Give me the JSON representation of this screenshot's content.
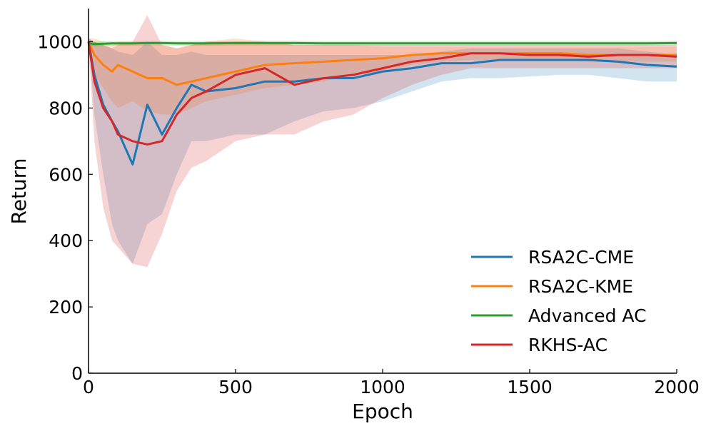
{
  "chart_data": {
    "type": "line",
    "x_label": "Epoch",
    "y_label": "Return",
    "x": [
      0,
      20,
      50,
      80,
      100,
      150,
      200,
      250,
      300,
      350,
      400,
      500,
      600,
      700,
      800,
      900,
      1000,
      1100,
      1200,
      1300,
      1400,
      1500,
      1600,
      1700,
      1800,
      1900,
      2000
    ],
    "xlim": [
      0,
      2000
    ],
    "xticks": [
      0,
      500,
      1000,
      1500,
      2000
    ],
    "ylim": [
      0,
      1100
    ],
    "yticks": [
      0,
      200,
      400,
      600,
      800,
      1000
    ],
    "legend": "lower right",
    "band_opacity": 0.2,
    "series": [
      {
        "name": "RSA2C-CME",
        "color": "#1f77b4",
        "values": [
          1000,
          900,
          810,
          760,
          730,
          630,
          810,
          720,
          800,
          870,
          850,
          860,
          880,
          880,
          890,
          890,
          910,
          920,
          935,
          935,
          945,
          945,
          945,
          945,
          940,
          930,
          925
        ],
        "lower": [
          1000,
          780,
          600,
          450,
          400,
          330,
          450,
          480,
          600,
          700,
          700,
          720,
          720,
          760,
          790,
          800,
          820,
          850,
          880,
          890,
          890,
          895,
          900,
          900,
          890,
          880,
          880
        ],
        "upper": [
          1010,
          1000,
          990,
          980,
          970,
          960,
          1000,
          960,
          960,
          970,
          960,
          960,
          960,
          960,
          960,
          960,
          960,
          960,
          970,
          980,
          980,
          980,
          980,
          980,
          980,
          970,
          960
        ]
      },
      {
        "name": "RSA2C-KME",
        "color": "#ff7f0e",
        "values": [
          1000,
          960,
          930,
          910,
          930,
          910,
          890,
          890,
          870,
          880,
          890,
          910,
          930,
          935,
          940,
          945,
          950,
          960,
          965,
          965,
          965,
          965,
          965,
          960,
          960,
          960,
          960
        ],
        "lower": [
          990,
          900,
          860,
          820,
          800,
          820,
          790,
          780,
          780,
          800,
          820,
          840,
          860,
          870,
          880,
          900,
          910,
          930,
          940,
          945,
          945,
          945,
          945,
          940,
          940,
          940,
          940
        ],
        "upper": [
          1010,
          1010,
          1000,
          990,
          1000,
          1000,
          990,
          990,
          980,
          990,
          1000,
          1010,
          1000,
          990,
          990,
          990,
          985,
          985,
          985,
          985,
          985,
          985,
          985,
          985,
          985,
          985,
          985
        ]
      },
      {
        "name": "Advanced AC",
        "color": "#2ca02c",
        "values": [
          995,
          993,
          994,
          995,
          995,
          995,
          996,
          996,
          995,
          995,
          995,
          996,
          996,
          996,
          995,
          995,
          995,
          995,
          995,
          995,
          995,
          995,
          995,
          995,
          995,
          995,
          996
        ],
        "lower": [
          988,
          986,
          987,
          988,
          988,
          988,
          989,
          989,
          988,
          988,
          988,
          989,
          989,
          989,
          988,
          988,
          988,
          988,
          988,
          988,
          988,
          988,
          988,
          988,
          988,
          988,
          989
        ],
        "upper": [
          1002,
          1000,
          1001,
          1002,
          1002,
          1002,
          1003,
          1003,
          1002,
          1002,
          1002,
          1003,
          1003,
          1003,
          1002,
          1002,
          1002,
          1002,
          1002,
          1002,
          1002,
          1002,
          1002,
          1002,
          1002,
          1002,
          1003
        ]
      },
      {
        "name": "RKHS-AC",
        "color": "#d62728",
        "values": [
          1000,
          880,
          800,
          760,
          720,
          700,
          690,
          700,
          780,
          830,
          850,
          900,
          920,
          870,
          890,
          900,
          920,
          940,
          950,
          965,
          965,
          960,
          960,
          955,
          960,
          960,
          955
        ],
        "lower": [
          990,
          700,
          500,
          400,
          380,
          330,
          320,
          420,
          550,
          620,
          640,
          700,
          720,
          720,
          760,
          780,
          830,
          870,
          900,
          920,
          920,
          920,
          920,
          920,
          920,
          920,
          920
        ],
        "upper": [
          1010,
          1000,
          990,
          980,
          990,
          1000,
          1080,
          990,
          980,
          990,
          1000,
          1000,
          1000,
          990,
          990,
          990,
          990,
          990,
          990,
          990,
          990,
          990,
          990,
          990,
          990,
          990,
          990
        ]
      }
    ]
  }
}
